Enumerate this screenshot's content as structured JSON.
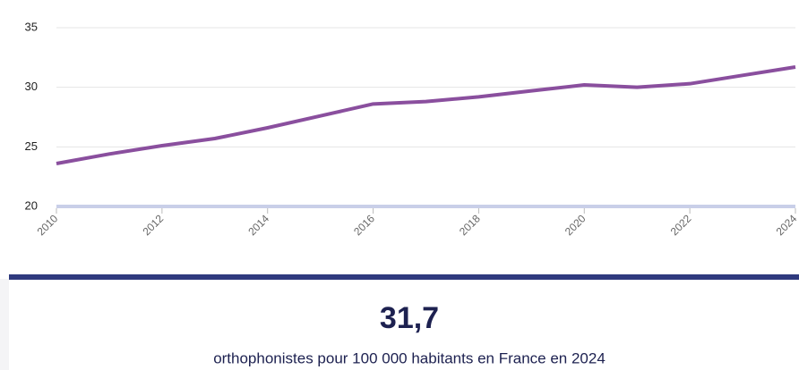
{
  "chart_data": {
    "type": "line",
    "x": [
      2010,
      2011,
      2012,
      2013,
      2014,
      2015,
      2016,
      2017,
      2018,
      2019,
      2020,
      2021,
      2022,
      2023,
      2024
    ],
    "series": [
      {
        "color": "#8a4f9e",
        "values": [
          23.6,
          24.4,
          25.1,
          25.7,
          26.6,
          27.6,
          28.6,
          28.8,
          29.2,
          29.7,
          30.2,
          30.0,
          30.3,
          31.0,
          31.7
        ]
      }
    ],
    "xlim": [
      2010,
      2024
    ],
    "xticks": [
      2010,
      2012,
      2014,
      2016,
      2018,
      2020,
      2022,
      2024
    ],
    "ylim": [
      20,
      35
    ],
    "yticks": [
      20,
      25,
      30,
      35
    ],
    "grid": true
  },
  "kpi": {
    "value": "31,7",
    "caption": "orthophonistes pour 100 000 habitants en France en 2024"
  }
}
